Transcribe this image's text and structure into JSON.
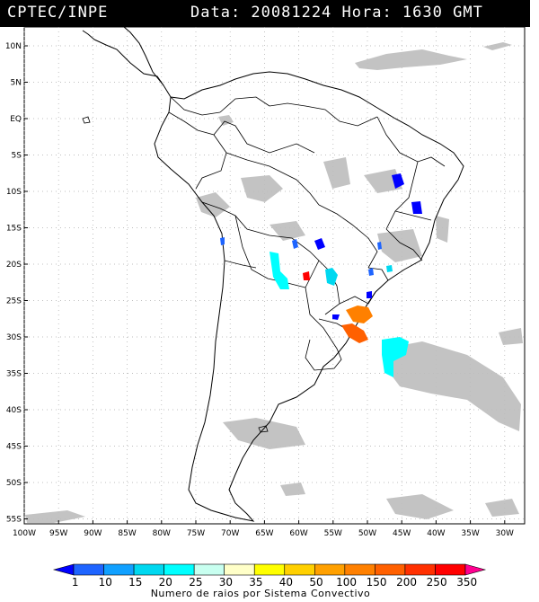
{
  "header": {
    "left": "CPTEC/INPE",
    "right": "Data: 20081224 Hora: 1630 GMT"
  },
  "map": {
    "lat_labels": [
      "10N",
      "5N",
      "EQ",
      "5S",
      "10S",
      "15S",
      "20S",
      "25S",
      "30S",
      "35S",
      "40S",
      "45S",
      "50S",
      "55S"
    ],
    "lon_labels": [
      "100W",
      "95W",
      "90W",
      "85W",
      "80W",
      "75W",
      "70W",
      "65W",
      "60W",
      "55W",
      "50W",
      "45W",
      "40W",
      "35W",
      "30W"
    ],
    "lat_range": [
      -56,
      12
    ],
    "lon_range": [
      -100,
      -28
    ]
  },
  "colorbar": {
    "labels": [
      "1",
      "10",
      "15",
      "20",
      "25",
      "30",
      "35",
      "40",
      "50",
      "100",
      "150",
      "200",
      "250",
      "350"
    ],
    "colors": [
      "#0000ff",
      "#1e64ff",
      "#10a0ff",
      "#00d8f0",
      "#00ffff",
      "#c8fff0",
      "#ffffc8",
      "#ffff00",
      "#ffd000",
      "#ffa000",
      "#ff8000",
      "#ff6000",
      "#ff3000",
      "#ff0000",
      "#ff0090"
    ],
    "title": "Numero de raios por Sistema Convectivo"
  }
}
